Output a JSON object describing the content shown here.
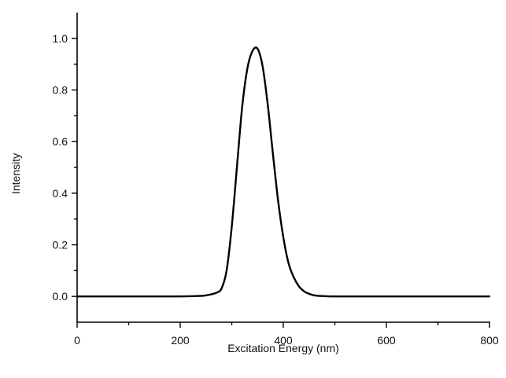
{
  "chart_data": {
    "type": "line",
    "title": "",
    "xlabel": "Excitation Energy (nm)",
    "ylabel": "Intensity",
    "xlim": [
      0,
      800
    ],
    "ylim": [
      -0.1,
      1.1
    ],
    "x_ticks": [
      0,
      200,
      400,
      600,
      800
    ],
    "x_tick_labels": [
      "0",
      "200",
      "400",
      "600",
      "800"
    ],
    "y_ticks": [
      0.0,
      0.2,
      0.4,
      0.6,
      0.8,
      1.0
    ],
    "y_tick_labels": [
      "0.0",
      "0.2",
      "0.4",
      "0.6",
      "0.8",
      "1.0"
    ],
    "grid": false,
    "line_color": "#000000",
    "series": [
      {
        "x": [
          0,
          100,
          200,
          240,
          250,
          260,
          270,
          280,
          290,
          300,
          310,
          320,
          330,
          340,
          350,
          360,
          370,
          380,
          390,
          400,
          410,
          420,
          430,
          440,
          450,
          460,
          470,
          480,
          500,
          600,
          700,
          800
        ],
        "y": [
          0,
          0,
          0,
          0.002,
          0.004,
          0.008,
          0.014,
          0.03,
          0.1,
          0.27,
          0.5,
          0.73,
          0.88,
          0.95,
          0.96,
          0.89,
          0.74,
          0.55,
          0.37,
          0.23,
          0.13,
          0.075,
          0.04,
          0.02,
          0.01,
          0.004,
          0.002,
          0.001,
          0,
          0,
          0,
          0
        ]
      }
    ]
  }
}
